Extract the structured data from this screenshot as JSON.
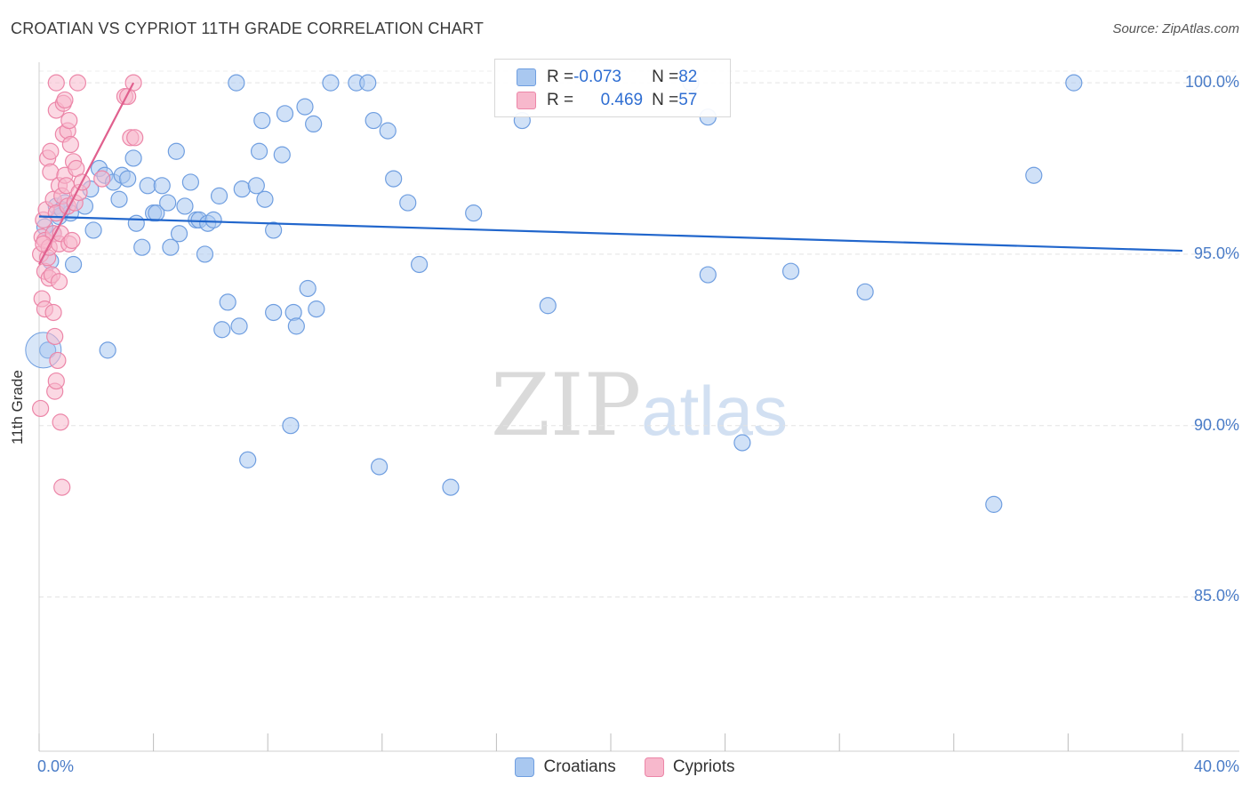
{
  "title": "CROATIAN VS CYPRIOT 11TH GRADE CORRELATION CHART",
  "source": "Source: ZipAtlas.com",
  "watermark": {
    "zip": "ZIP",
    "atlas": "atlas"
  },
  "legend": {
    "rows": [
      {
        "r_label": "R = ",
        "r_value": "-0.073",
        "n_label": "N = ",
        "n_value": "82"
      },
      {
        "r_label": "R = ",
        "r_value": "0.469",
        "n_label": "N = ",
        "n_value": "57"
      }
    ]
  },
  "colors": {
    "croatians_fill": "#a9c8f0",
    "croatians_stroke": "#6f9ee0",
    "croatians_line": "#2166cc",
    "cypriots_fill": "#f7b8cc",
    "cypriots_stroke": "#ec86a8",
    "cypriots_line": "#e0608e",
    "tick_label": "#4a7cc7",
    "grid": "#e3e3e3"
  },
  "chart_data": {
    "type": "scatter",
    "title": "CROATIAN VS CYPRIOT 11TH GRADE CORRELATION CHART",
    "xlabel": "",
    "ylabel": "11th Grade",
    "xlim": [
      0,
      40
    ],
    "ylim": [
      80.5,
      100.6
    ],
    "x_tick_labels": [
      "0.0%",
      "40.0%"
    ],
    "y_ticks": [
      85,
      90,
      95,
      100
    ],
    "y_tick_labels": [
      "85.0%",
      "90.0%",
      "95.0%",
      "100.0%"
    ],
    "grid": true,
    "legend_position": "bottom-center",
    "series": [
      {
        "name": "Croatians",
        "r": -0.073,
        "n": 82,
        "trend": [
          [
            0,
            96.1
          ],
          [
            40,
            95.1
          ]
        ],
        "points": [
          [
            0.3,
            92.2
          ],
          [
            0.4,
            94.8
          ],
          [
            0.5,
            95.6
          ],
          [
            0.6,
            96.4
          ],
          [
            0.7,
            96.1
          ],
          [
            0.9,
            96.5
          ],
          [
            1.1,
            96.2
          ],
          [
            1.2,
            94.7
          ],
          [
            1.6,
            96.4
          ],
          [
            1.8,
            96.9
          ],
          [
            1.9,
            95.7
          ],
          [
            2.1,
            97.5
          ],
          [
            2.3,
            97.3
          ],
          [
            2.4,
            92.2
          ],
          [
            2.6,
            97.1
          ],
          [
            2.8,
            96.6
          ],
          [
            2.9,
            97.3
          ],
          [
            3.1,
            97.2
          ],
          [
            3.3,
            97.8
          ],
          [
            3.4,
            95.9
          ],
          [
            3.6,
            95.2
          ],
          [
            3.8,
            97.0
          ],
          [
            4.0,
            96.2
          ],
          [
            4.1,
            96.2
          ],
          [
            4.3,
            97.0
          ],
          [
            4.5,
            96.5
          ],
          [
            4.6,
            95.2
          ],
          [
            4.8,
            98.0
          ],
          [
            4.9,
            95.6
          ],
          [
            5.1,
            96.4
          ],
          [
            5.3,
            97.1
          ],
          [
            5.5,
            96.0
          ],
          [
            5.6,
            96.0
          ],
          [
            5.8,
            95.0
          ],
          [
            5.9,
            95.9
          ],
          [
            6.1,
            96.0
          ],
          [
            6.3,
            96.7
          ],
          [
            6.4,
            92.8
          ],
          [
            6.6,
            93.6
          ],
          [
            6.9,
            100.0
          ],
          [
            7.0,
            92.9
          ],
          [
            7.1,
            96.9
          ],
          [
            7.3,
            89.0
          ],
          [
            7.6,
            97.0
          ],
          [
            7.7,
            98.0
          ],
          [
            7.8,
            98.9
          ],
          [
            7.9,
            96.6
          ],
          [
            8.2,
            93.3
          ],
          [
            8.2,
            95.7
          ],
          [
            8.5,
            97.9
          ],
          [
            8.6,
            99.1
          ],
          [
            8.8,
            90.0
          ],
          [
            8.9,
            93.3
          ],
          [
            9.0,
            92.9
          ],
          [
            9.3,
            99.3
          ],
          [
            9.4,
            94.0
          ],
          [
            9.6,
            98.8
          ],
          [
            9.7,
            93.4
          ],
          [
            10.2,
            100.0
          ],
          [
            11.1,
            100.0
          ],
          [
            11.5,
            100.0
          ],
          [
            11.7,
            98.9
          ],
          [
            11.9,
            88.8
          ],
          [
            12.2,
            98.6
          ],
          [
            12.4,
            97.2
          ],
          [
            12.9,
            96.5
          ],
          [
            13.3,
            94.7
          ],
          [
            14.4,
            88.2
          ],
          [
            15.2,
            96.2
          ],
          [
            16.9,
            98.9
          ],
          [
            17.8,
            93.5
          ],
          [
            22.8,
            100.0
          ],
          [
            23.4,
            94.4
          ],
          [
            23.4,
            99.0
          ],
          [
            24.6,
            89.5
          ],
          [
            26.3,
            94.5
          ],
          [
            28.9,
            93.9
          ],
          [
            33.4,
            87.7
          ],
          [
            34.8,
            97.3
          ],
          [
            36.2,
            100.0
          ],
          [
            0.2,
            95.8
          ],
          [
            0.8,
            96.3
          ]
        ]
      },
      {
        "name": "Cypriots",
        "r": 0.469,
        "n": 57,
        "trend": [
          [
            0,
            94.7
          ],
          [
            3.3,
            100.0
          ]
        ],
        "points": [
          [
            0.05,
            90.5
          ],
          [
            0.05,
            95.0
          ],
          [
            0.1,
            95.5
          ],
          [
            0.1,
            93.7
          ],
          [
            0.15,
            96.0
          ],
          [
            0.2,
            94.5
          ],
          [
            0.2,
            93.4
          ],
          [
            0.2,
            95.4
          ],
          [
            0.25,
            96.3
          ],
          [
            0.3,
            94.9
          ],
          [
            0.3,
            97.8
          ],
          [
            0.35,
            94.3
          ],
          [
            0.35,
            95.2
          ],
          [
            0.4,
            97.4
          ],
          [
            0.4,
            98.0
          ],
          [
            0.45,
            94.4
          ],
          [
            0.5,
            96.6
          ],
          [
            0.5,
            95.6
          ],
          [
            0.5,
            93.3
          ],
          [
            0.55,
            91.0
          ],
          [
            0.55,
            92.6
          ],
          [
            0.6,
            91.3
          ],
          [
            0.6,
            96.2
          ],
          [
            0.6,
            99.2
          ],
          [
            0.6,
            100.0
          ],
          [
            0.65,
            91.9
          ],
          [
            0.7,
            94.2
          ],
          [
            0.7,
            97.0
          ],
          [
            0.7,
            95.3
          ],
          [
            0.75,
            90.1
          ],
          [
            0.75,
            95.6
          ],
          [
            0.8,
            88.2
          ],
          [
            0.8,
            96.7
          ],
          [
            0.85,
            98.5
          ],
          [
            0.85,
            99.4
          ],
          [
            0.9,
            97.3
          ],
          [
            0.9,
            99.5
          ],
          [
            0.95,
            97.0
          ],
          [
            1.0,
            98.6
          ],
          [
            1.0,
            96.4
          ],
          [
            1.05,
            98.9
          ],
          [
            1.05,
            95.3
          ],
          [
            1.1,
            98.2
          ],
          [
            1.15,
            95.4
          ],
          [
            1.2,
            97.7
          ],
          [
            1.25,
            96.5
          ],
          [
            1.3,
            97.5
          ],
          [
            1.35,
            100.0
          ],
          [
            1.4,
            96.8
          ],
          [
            1.5,
            97.1
          ],
          [
            2.2,
            97.2
          ],
          [
            3.0,
            99.6
          ],
          [
            3.1,
            99.6
          ],
          [
            3.2,
            98.4
          ],
          [
            3.3,
            100.0
          ],
          [
            3.35,
            98.4
          ],
          [
            0.15,
            95.3
          ]
        ]
      }
    ]
  },
  "bottom_legend": [
    {
      "label": "Croatians"
    },
    {
      "label": "Cypriots"
    }
  ]
}
